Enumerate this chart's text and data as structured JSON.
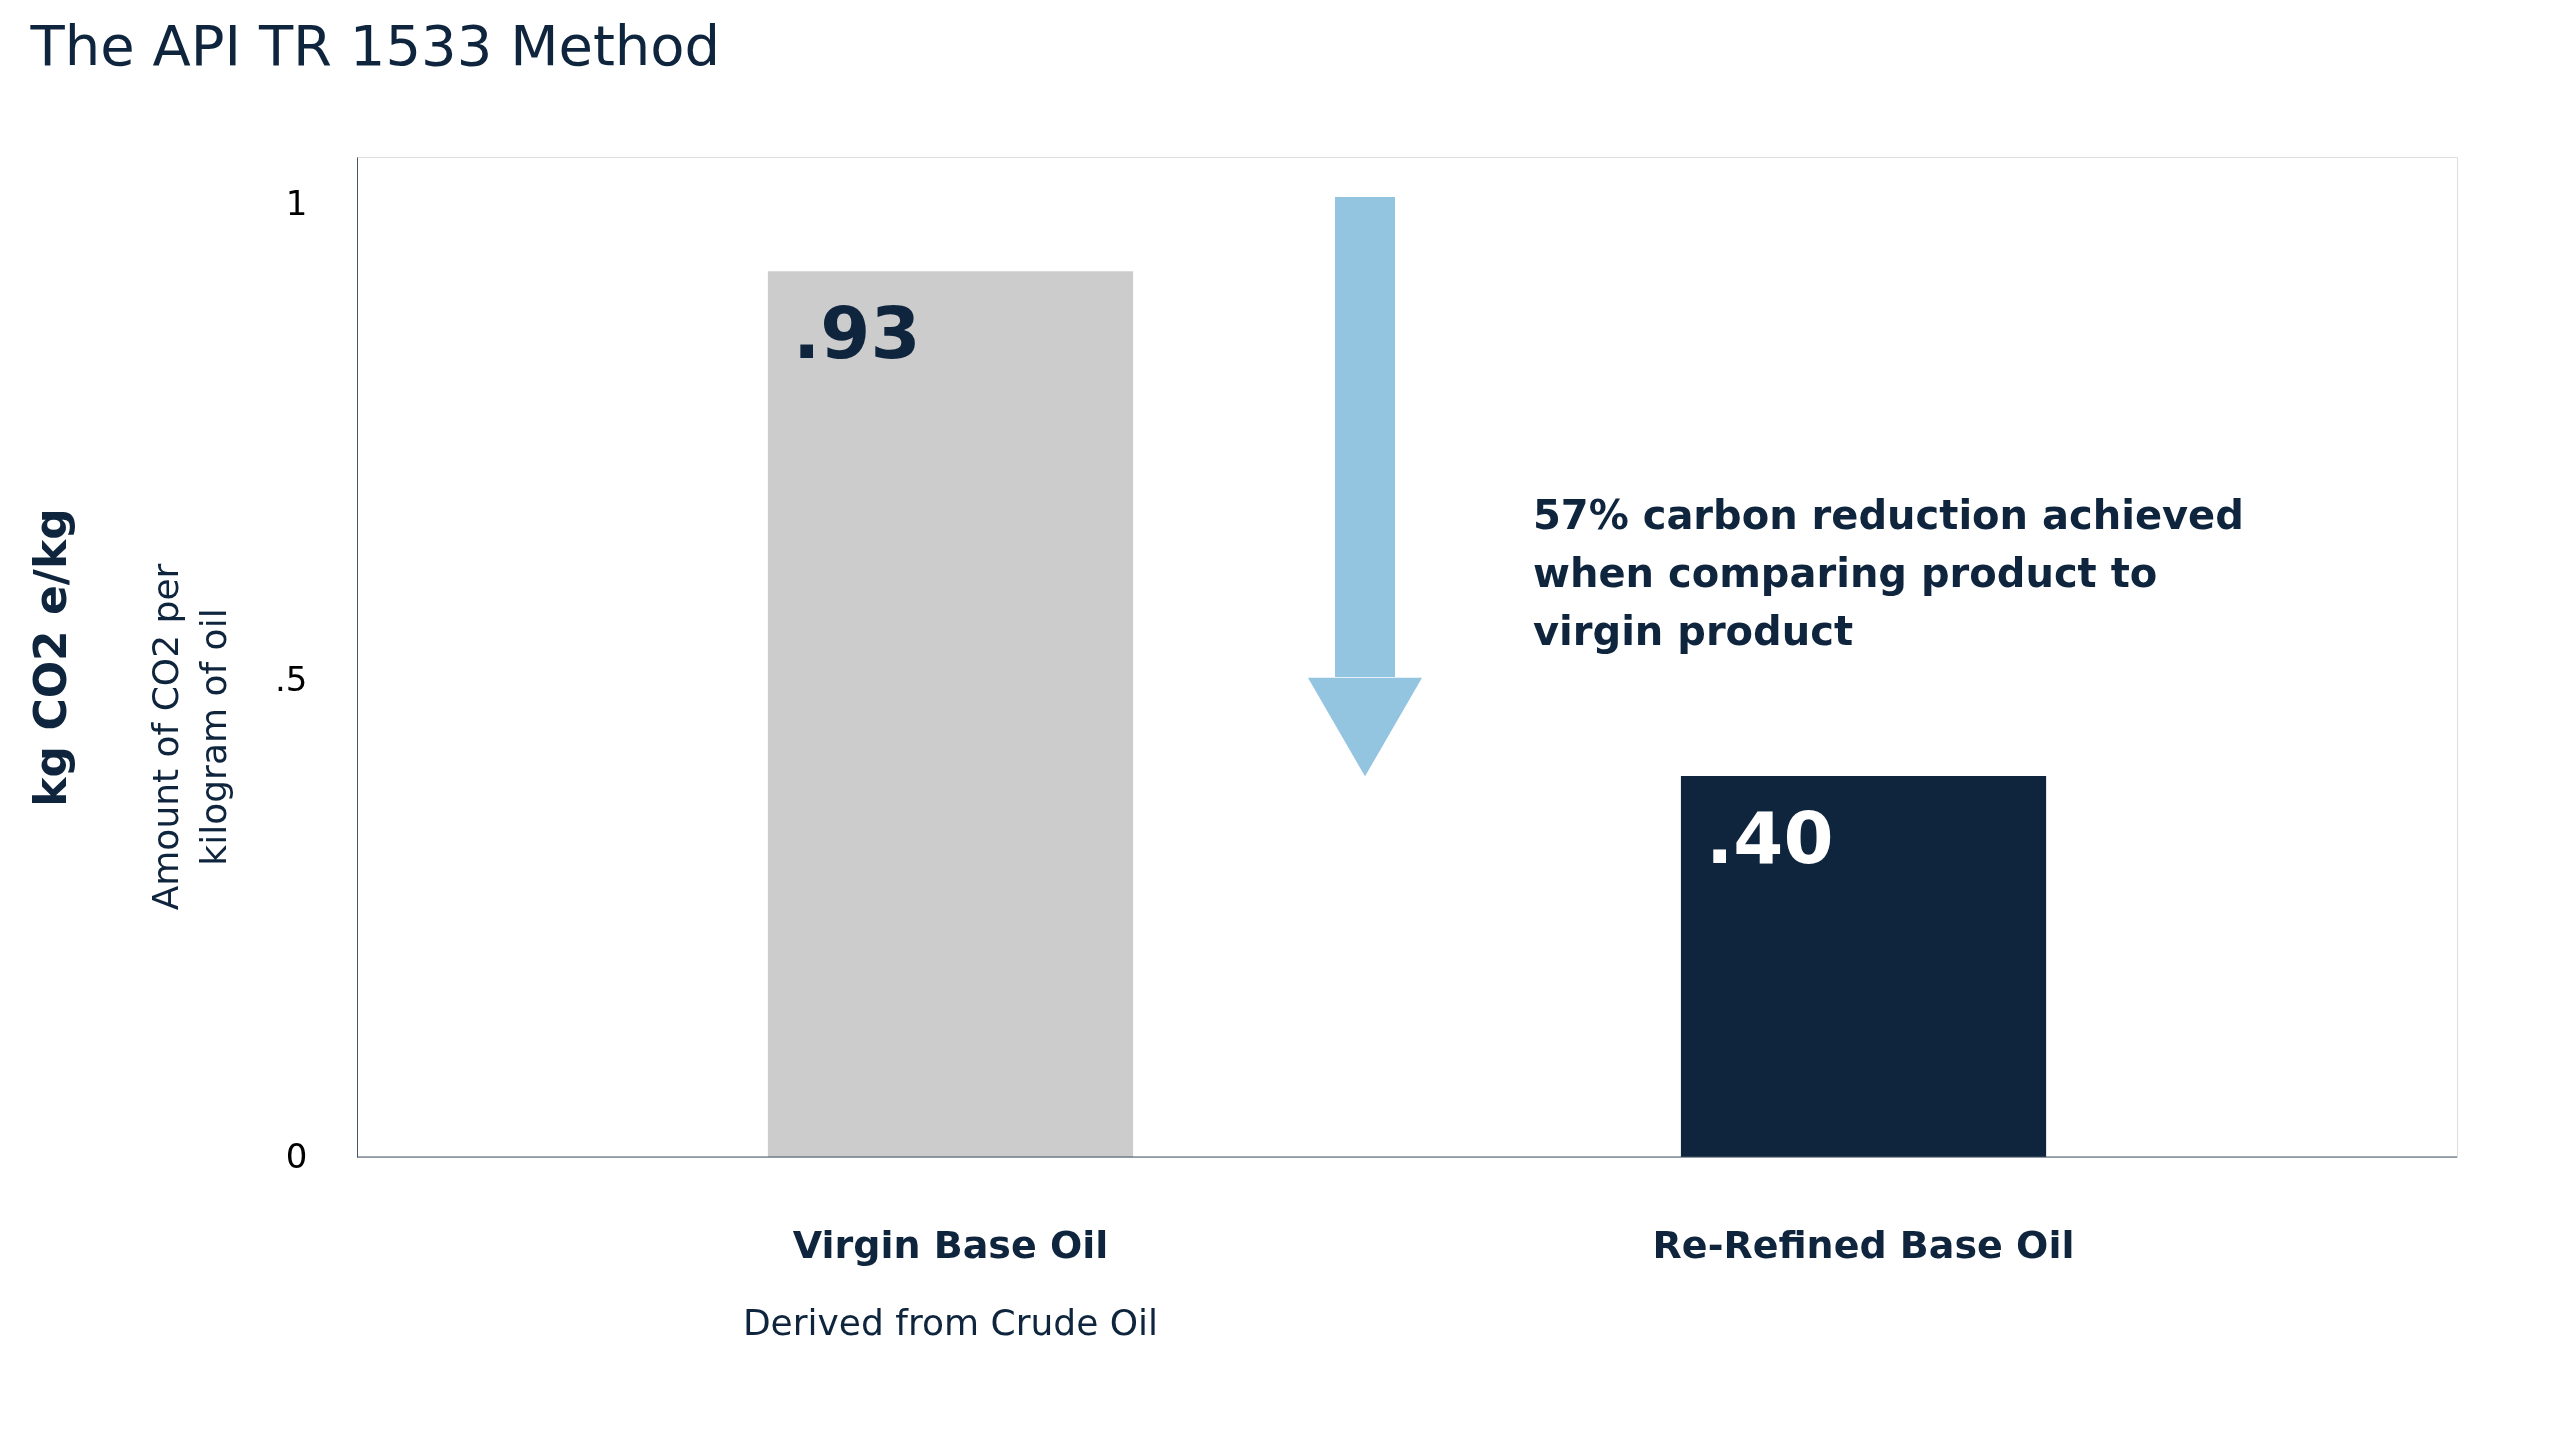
{
  "chart_data": {
    "type": "bar",
    "title": "The API TR 1533 Method",
    "ylabel": "kg CO2 e/kg",
    "categories": [
      "Virgin Base Oil",
      "Re-Refined Base Oil"
    ],
    "values": [
      0.93,
      0.4
    ],
    "colors": [
      "#cccccc",
      "#0f253d"
    ],
    "value_labels": [
      ".93",
      ".40"
    ],
    "ylim": [
      0,
      1.05
    ],
    "yticks": [
      0,
      {
        "value": 0.5,
        "label": ".5"
      },
      1
    ],
    "grid": false,
    "annotations": [
      "57% carbon reduction achieved when comparing product to virgin product",
      "Amount of CO2 per kilogram of oil",
      "Derived from Crude Oil"
    ]
  }
}
